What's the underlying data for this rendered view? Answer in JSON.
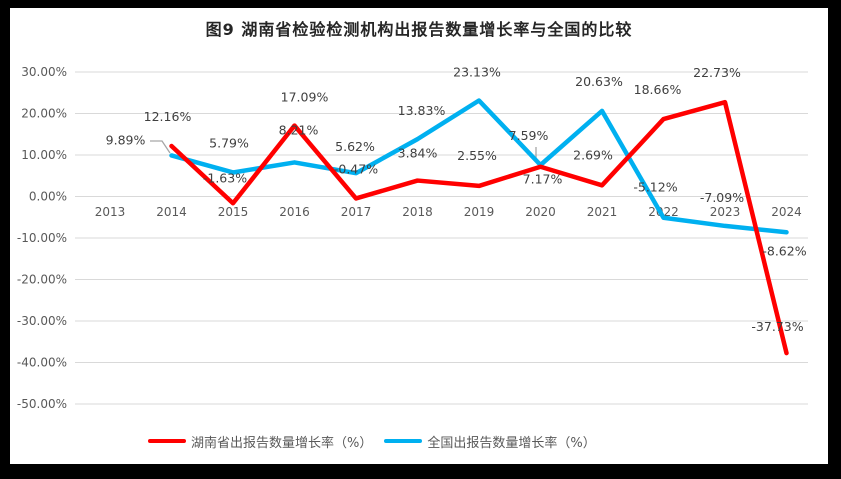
{
  "frame": {
    "background": "#000000",
    "chart_background": "#FFFFFF"
  },
  "title": "图9 湖南省检验检测机构出报告数量增长率与全国的比较",
  "legend": [
    {
      "label": "湖南省出报告数量增长率（%）",
      "color": "#FF0000"
    },
    {
      "label": "全国出报告数量增长率（%）",
      "color": "#00B0F0"
    }
  ],
  "chart_data": {
    "type": "line",
    "title": "图9 湖南省检验检测机构出报告数量增长率与全国的比较",
    "xlabel": "",
    "ylabel": "",
    "categories": [
      "2013",
      "2014",
      "2015",
      "2016",
      "2017",
      "2018",
      "2019",
      "2020",
      "2021",
      "2022",
      "2023",
      "2024"
    ],
    "series": [
      {
        "name": "湖南省出报告数量增长率（%）",
        "color": "#FF0000",
        "start_index": 1,
        "values": [
          12.16,
          -1.63,
          17.09,
          -0.47,
          3.84,
          2.55,
          7.17,
          2.69,
          18.66,
          22.73,
          -37.73
        ],
        "labels": [
          "12.16%",
          "-1.63%",
          "17.09%",
          "-0.47%",
          "3.84%",
          "2.55%",
          "7.17%",
          "2.69%",
          "18.66%",
          "22.73%",
          "-37.73%"
        ],
        "label_dx": [
          -4,
          -8,
          10,
          0,
          0,
          -2,
          2,
          -9,
          -6,
          -8,
          -9
        ],
        "label_dy": [
          -29,
          -25,
          -28,
          -29,
          -27,
          -30,
          13,
          -30,
          -29,
          -29,
          -26
        ]
      },
      {
        "name": "全国出报告数量增长率（%）",
        "color": "#00B0F0",
        "start_index": 1,
        "values": [
          9.89,
          5.79,
          8.21,
          5.62,
          13.83,
          23.13,
          7.59,
          20.63,
          -5.12,
          -7.09,
          -8.62
        ],
        "labels": [
          "9.89%",
          "5.79%",
          "8.21%",
          "5.62%",
          "13.83%",
          "23.13%",
          "7.59%",
          "20.63%",
          "-5.12%",
          "-7.09%",
          "-8.62%"
        ],
        "label_dx": [
          -46,
          -4,
          4,
          -1,
          4,
          -2,
          -12,
          -3,
          -8,
          -3,
          -2
        ],
        "label_dy": [
          -15,
          -29,
          -32,
          -26,
          -28,
          -28,
          -29,
          -29,
          -30,
          -28,
          19
        ]
      }
    ],
    "ylim": [
      -50,
      30
    ],
    "y_tick_step": 10,
    "y_ticks": [
      "30.00%",
      "20.00%",
      "10.00%",
      "0.00%",
      "-10.00%",
      "-20.00%",
      "-30.00%",
      "-40.00%",
      "-50.00%"
    ],
    "y_tick_values": [
      30,
      20,
      10,
      0,
      -10,
      -20,
      -30,
      -40,
      -50
    ],
    "grid": true,
    "gridline_color": "#D9D9D9",
    "axis_text_color": "#595959",
    "data_label_color": "#404040",
    "legend_position": "bottom",
    "leader_lines": [
      {
        "for_label": "9.89%",
        "points": [
          [
            150,
            141
          ],
          [
            162,
            141
          ],
          [
            170,
            153
          ]
        ]
      },
      {
        "for_label": "7.59%",
        "points": [
          [
            536,
            147
          ],
          [
            536,
            160
          ]
        ]
      }
    ]
  }
}
